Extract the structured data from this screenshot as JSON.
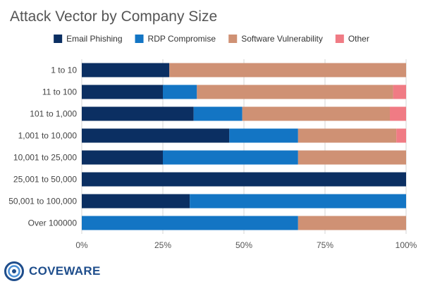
{
  "chart_data": {
    "type": "bar",
    "orientation": "horizontal",
    "stacked": true,
    "title": "Attack Vector by Company Size",
    "categories": [
      "1 to 10",
      "11 to 100",
      "101 to 1,000",
      "1,001 to 10,000",
      "10,001 to 25,000",
      "25,001 to 50,000",
      "50,001 to 100,000",
      "Over 100000"
    ],
    "series": [
      {
        "name": "Email Phishing",
        "color": "#0b2f62",
        "values": [
          27,
          25,
          34.5,
          45.5,
          25,
          100,
          33.3,
          0
        ]
      },
      {
        "name": "RDP Compromise",
        "color": "#1375c4",
        "values": [
          0,
          10.5,
          15,
          21.2,
          41.7,
          0,
          66.7,
          66.7
        ]
      },
      {
        "name": "Software Vulnerability",
        "color": "#cf9174",
        "values": [
          73,
          60.5,
          45.5,
          30.3,
          33.3,
          0,
          0,
          33.3
        ]
      },
      {
        "name": "Other",
        "color": "#f07b84",
        "values": [
          0,
          4,
          5,
          3,
          0,
          0,
          0,
          0
        ]
      }
    ],
    "xlim": [
      0,
      100
    ],
    "xticks": [
      "0%",
      "25%",
      "50%",
      "75%",
      "100%"
    ],
    "grid": true,
    "legend": "top"
  },
  "logo": {
    "text": "COVEWARE",
    "icon": "coveware-logo-icon"
  }
}
